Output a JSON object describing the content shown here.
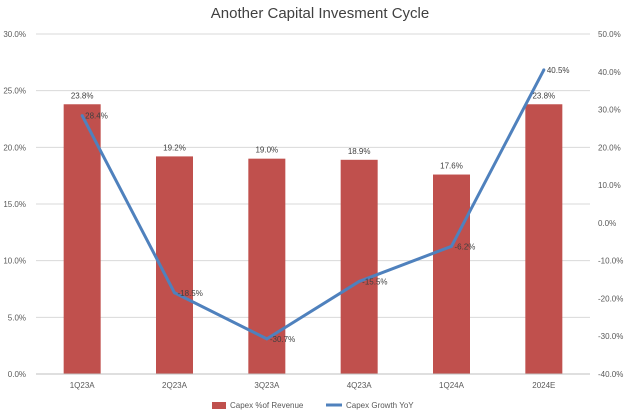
{
  "chart_data": {
    "type": "bar",
    "title": "Another Capital Invesment Cycle",
    "categories": [
      "1Q23A",
      "2Q23A",
      "3Q23A",
      "4Q23A",
      "1Q24A",
      "2024E"
    ],
    "series": [
      {
        "name": "Capex %of Revenue",
        "type": "bar",
        "axis": "left",
        "color": "#C0504D",
        "values": [
          23.8,
          19.2,
          19.0,
          18.9,
          17.6,
          23.8
        ],
        "labels": [
          "23.8%",
          "19.2%",
          "19.0%",
          "18.9%",
          "17.6%",
          "23.8%"
        ]
      },
      {
        "name": "Capex Growth YoY",
        "type": "line",
        "axis": "right",
        "color": "#4F81BD",
        "values": [
          28.4,
          -18.5,
          -30.7,
          -15.5,
          -6.2,
          40.5
        ],
        "labels": [
          "28.4%",
          "-18.5%",
          "-30.7%",
          "-15.5%",
          "-6.2%",
          "40.5%"
        ]
      }
    ],
    "y_left": {
      "lim": [
        0,
        30
      ],
      "ticks": [
        0,
        5,
        10,
        15,
        20,
        25,
        30
      ],
      "tick_labels": [
        "0.0%",
        "5.0%",
        "10.0%",
        "15.0%",
        "20.0%",
        "25.0%",
        "30.0%"
      ]
    },
    "y_right": {
      "lim": [
        -40,
        50
      ],
      "ticks": [
        -40,
        -30,
        -20,
        -10,
        0,
        10,
        20,
        30,
        40,
        50
      ],
      "tick_labels": [
        "-40.0%",
        "-30.0%",
        "-20.0%",
        "-10.0%",
        "0.0%",
        "10.0%",
        "20.0%",
        "30.0%",
        "40.0%",
        "50.0%"
      ]
    },
    "grid": true,
    "legend": "bottom-center"
  }
}
